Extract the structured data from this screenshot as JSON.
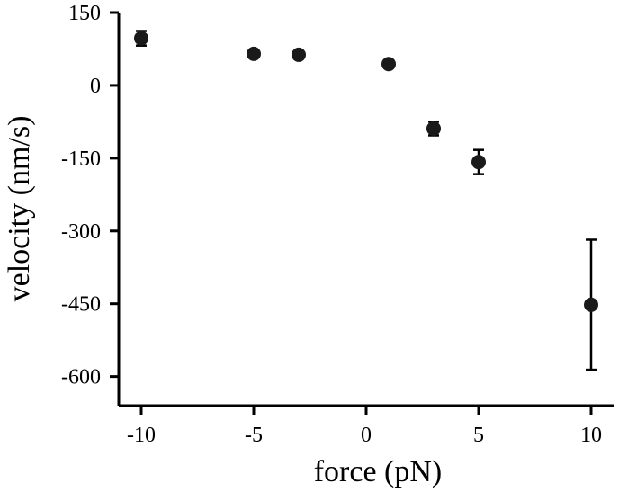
{
  "chart_data": {
    "type": "scatter",
    "xlabel": "force (pN)",
    "ylabel": "velocity (nm/s)",
    "xlim": [
      -11,
      11
    ],
    "ylim": [
      -660,
      150
    ],
    "xticks": [
      -10,
      -5,
      0,
      5,
      10
    ],
    "yticks": [
      150,
      0,
      -150,
      -300,
      -450,
      -600
    ],
    "xtick_labels": [
      "-10",
      "-5",
      "0",
      "5",
      "10"
    ],
    "ytick_labels": [
      "150",
      "0",
      "-150",
      "-300",
      "-450",
      "-600"
    ],
    "grid": false,
    "points": [
      {
        "x": -10,
        "y": 97,
        "err_low": 82,
        "err_high": 112
      },
      {
        "x": -5,
        "y": 65
      },
      {
        "x": -3,
        "y": 63
      },
      {
        "x": 1,
        "y": 44
      },
      {
        "x": 3,
        "y": -89,
        "err_low": -103,
        "err_high": -75
      },
      {
        "x": 5,
        "y": -158,
        "err_low": -183,
        "err_high": -133
      },
      {
        "x": 10,
        "y": -452,
        "err_low": -586,
        "err_high": -318
      }
    ]
  }
}
